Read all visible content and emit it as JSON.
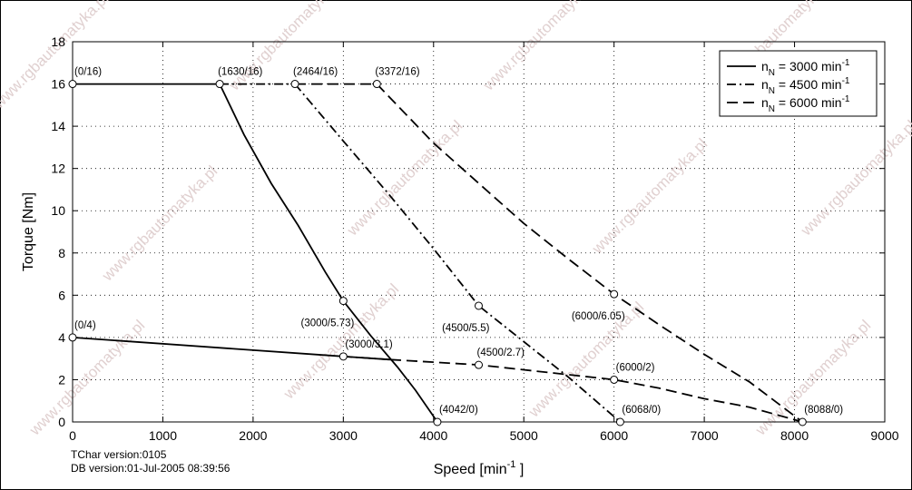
{
  "chart_data": {
    "type": "line",
    "xlabel_main": "Speed [min",
    "xlabel_sup": "-1",
    "xlabel_tail": " ]",
    "ylabel": "Torque [Nm]",
    "xlim": [
      0,
      9000
    ],
    "ylim": [
      0,
      18
    ],
    "xticks": [
      0,
      1000,
      2000,
      3000,
      4000,
      5000,
      6000,
      7000,
      8000,
      9000
    ],
    "yticks": [
      0,
      2,
      4,
      6,
      8,
      10,
      12,
      14,
      16,
      18
    ],
    "grid": "dotted",
    "legend_position": "top-right",
    "series": [
      {
        "name": "n_N = 3000 min^-1",
        "legend": {
          "base": "n",
          "sub": "N",
          "text": " = 3000 min",
          "sup": "-1"
        },
        "style": "solid",
        "segments": [
          [
            [
              0,
              16
            ],
            [
              1630,
              16
            ]
          ],
          [
            [
              1630,
              16
            ],
            [
              1900,
              13.6
            ],
            [
              2200,
              11.3
            ],
            [
              2500,
              9.3
            ],
            [
              2800,
              7.1
            ],
            [
              3000,
              5.73
            ],
            [
              3300,
              4.1
            ],
            [
              3600,
              2.6
            ],
            [
              3800,
              1.5
            ],
            [
              4042,
              0
            ]
          ],
          [
            [
              0,
              4
            ],
            [
              3000,
              3.1
            ],
            [
              3520,
              2.95
            ]
          ]
        ]
      },
      {
        "name": "n_N = 4500 min^-1",
        "legend": {
          "base": "n",
          "sub": "N",
          "text": " = 4500 min",
          "sup": "-1"
        },
        "style": "dashdot",
        "segments": [
          [
            [
              1630,
              16
            ],
            [
              2464,
              16
            ]
          ],
          [
            [
              2464,
              16
            ],
            [
              3000,
              13.3
            ],
            [
              3500,
              10.8
            ],
            [
              4000,
              8.2
            ],
            [
              4500,
              5.5
            ],
            [
              5000,
              3.8
            ],
            [
              5500,
              2.1
            ],
            [
              6068,
              0
            ]
          ],
          [
            [
              3000,
              3.1
            ],
            [
              3520,
              2.95
            ]
          ]
        ]
      },
      {
        "name": "n_N = 6000 min^-1",
        "legend": {
          "base": "n",
          "sub": "N",
          "text": " = 6000 min",
          "sup": "-1"
        },
        "style": "dashed",
        "segments": [
          [
            [
              2464,
              16
            ],
            [
              3372,
              16
            ]
          ],
          [
            [
              3372,
              16
            ],
            [
              4000,
              13.2
            ],
            [
              4500,
              11.3
            ],
            [
              5000,
              9.4
            ],
            [
              5500,
              7.7
            ],
            [
              6000,
              6.05
            ],
            [
              6500,
              4.6
            ],
            [
              7000,
              3.2
            ],
            [
              7500,
              1.9
            ],
            [
              8088,
              0
            ]
          ],
          [
            [
              3520,
              2.95
            ],
            [
              4500,
              2.7
            ],
            [
              6000,
              2
            ],
            [
              6500,
              1.6
            ],
            [
              7000,
              1.1
            ],
            [
              7500,
              0.7
            ],
            [
              8088,
              0
            ]
          ]
        ]
      }
    ],
    "markers": [
      [
        0,
        16
      ],
      [
        1630,
        16
      ],
      [
        2464,
        16
      ],
      [
        3372,
        16
      ],
      [
        0,
        4
      ],
      [
        3000,
        5.73
      ],
      [
        3000,
        3.1
      ],
      [
        4042,
        0
      ],
      [
        4500,
        5.5
      ],
      [
        4500,
        2.7
      ],
      [
        6000,
        6.05
      ],
      [
        6000,
        2
      ],
      [
        6068,
        0
      ],
      [
        8088,
        0
      ]
    ],
    "annotations": [
      {
        "text": "(0/16)",
        "x": 0,
        "y": 16,
        "pos": "above-right"
      },
      {
        "text": "(1630/16)",
        "x": 1630,
        "y": 16,
        "pos": "above"
      },
      {
        "text": "(2464/16)",
        "x": 2464,
        "y": 16,
        "pos": "above"
      },
      {
        "text": "(3372/16)",
        "x": 3372,
        "y": 16,
        "pos": "above"
      },
      {
        "text": "(0/4)",
        "x": 0,
        "y": 4,
        "pos": "above-right"
      },
      {
        "text": "(3000/5.73)",
        "x": 3000,
        "y": 5.73,
        "pos": "below-left"
      },
      {
        "text": "(3000/3.1)",
        "x": 3000,
        "y": 3.1,
        "pos": "above-right"
      },
      {
        "text": "(4500/5.5)",
        "x": 4500,
        "y": 5.5,
        "pos": "below-left"
      },
      {
        "text": "(4500/2.7)",
        "x": 4500,
        "y": 2.7,
        "pos": "above"
      },
      {
        "text": "(6000/6.05)",
        "x": 6000,
        "y": 6.05,
        "pos": "below-left"
      },
      {
        "text": "(6000/2)",
        "x": 6000,
        "y": 2,
        "pos": "above-right"
      },
      {
        "text": "(4042/0)",
        "x": 4042,
        "y": 0,
        "pos": "above-right"
      },
      {
        "text": "(6068/0)",
        "x": 6068,
        "y": 0,
        "pos": "above-right"
      },
      {
        "text": "(8088/0)",
        "x": 8088,
        "y": 0,
        "pos": "above-right"
      }
    ]
  },
  "footer": {
    "tchar": "TChar version:0105",
    "db": "DB version:01-Jul-2005 08:39:56"
  },
  "watermark": "www.rgbautomatyka.pl"
}
